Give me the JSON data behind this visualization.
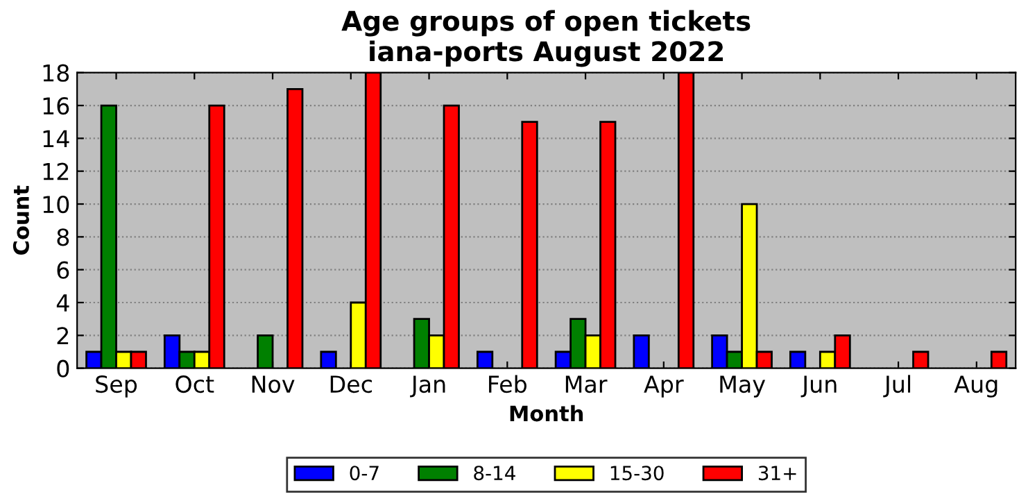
{
  "chart_data": {
    "type": "bar",
    "title": "Age groups of open tickets\niana-ports August 2022",
    "xlabel": "Month",
    "ylabel": "Count",
    "categories": [
      "Sep",
      "Oct",
      "Nov",
      "Dec",
      "Jan",
      "Feb",
      "Mar",
      "Apr",
      "May",
      "Jun",
      "Jul",
      "Aug"
    ],
    "series": [
      {
        "name": "0-7",
        "color": "#0000ff",
        "values": [
          1,
          2,
          0,
          1,
          0,
          1,
          1,
          2,
          2,
          1,
          0,
          0
        ]
      },
      {
        "name": "8-14",
        "color": "#008000",
        "values": [
          16,
          1,
          2,
          0,
          3,
          0,
          3,
          0,
          1,
          0,
          0,
          0
        ]
      },
      {
        "name": "15-30",
        "color": "#ffff00",
        "values": [
          1,
          1,
          0,
          4,
          2,
          0,
          2,
          0,
          10,
          1,
          0,
          0
        ]
      },
      {
        "name": "31+",
        "color": "#ff0000",
        "values": [
          1,
          16,
          17,
          18,
          16,
          15,
          15,
          18,
          1,
          2,
          1,
          1
        ]
      }
    ],
    "ylim": [
      0,
      18
    ],
    "yticks": [
      0,
      2,
      4,
      6,
      8,
      10,
      12,
      14,
      16,
      18
    ],
    "grid": "y",
    "legend": "bottom"
  }
}
